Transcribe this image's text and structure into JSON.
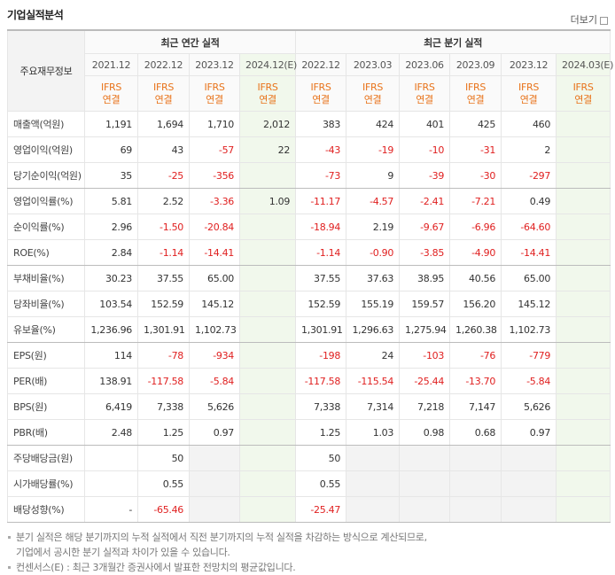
{
  "header": {
    "title": "기업실적분석",
    "more": "더보기"
  },
  "table": {
    "corner": "주요재무정보",
    "groups": [
      "최근 연간 실적",
      "최근 분기 실적"
    ],
    "periods": [
      "2021.12",
      "2022.12",
      "2023.12",
      "2024.12(E)",
      "2022.12",
      "2023.03",
      "2023.06",
      "2023.09",
      "2023.12",
      "2024.03(E)"
    ],
    "basis": [
      [
        "IFRS",
        "연결"
      ],
      [
        "IFRS",
        "연결"
      ],
      [
        "IFRS",
        "연결"
      ],
      [
        "IFRS",
        "연결"
      ],
      [
        "IFRS",
        "연결"
      ],
      [
        "IFRS",
        "연결"
      ],
      [
        "IFRS",
        "연결"
      ],
      [
        "IFRS",
        "연결"
      ],
      [
        "IFRS",
        "연결"
      ],
      [
        "IFRS",
        "연결"
      ]
    ],
    "rows": [
      [
        "매출액(억원)",
        "1,191",
        "1,694",
        "1,710",
        "2,012",
        "383",
        "424",
        "401",
        "425",
        "460",
        null
      ],
      [
        "영업이익(억원)",
        "69",
        "43",
        "-57",
        "22",
        "-43",
        "-19",
        "-10",
        "-31",
        "2",
        null
      ],
      [
        "당기순이익(억원)",
        "35",
        "-25",
        "-356",
        null,
        "-73",
        "9",
        "-39",
        "-30",
        "-297",
        null
      ],
      [
        "영업이익률(%)",
        "5.81",
        "2.52",
        "-3.36",
        "1.09",
        "-11.17",
        "-4.57",
        "-2.41",
        "-7.21",
        "0.49",
        null
      ],
      [
        "순이익률(%)",
        "2.96",
        "-1.50",
        "-20.84",
        null,
        "-18.94",
        "2.19",
        "-9.67",
        "-6.96",
        "-64.60",
        null
      ],
      [
        "ROE(%)",
        "2.84",
        "-1.14",
        "-14.41",
        null,
        "-1.14",
        "-0.90",
        "-3.85",
        "-4.90",
        "-14.41",
        null
      ],
      [
        "부채비율(%)",
        "30.23",
        "37.55",
        "65.00",
        null,
        "37.55",
        "37.63",
        "38.95",
        "40.56",
        "65.00",
        null
      ],
      [
        "당좌비율(%)",
        "103.54",
        "152.59",
        "145.12",
        null,
        "152.59",
        "155.19",
        "159.57",
        "156.20",
        "145.12",
        null
      ],
      [
        "유보율(%)",
        "1,236.96",
        "1,301.91",
        "1,102.73",
        null,
        "1,301.91",
        "1,296.63",
        "1,275.94",
        "1,260.38",
        "1,102.73",
        null
      ],
      [
        "EPS(원)",
        "114",
        "-78",
        "-934",
        null,
        "-198",
        "24",
        "-103",
        "-76",
        "-779",
        null
      ],
      [
        "PER(배)",
        "138.91",
        "-117.58",
        "-5.84",
        null,
        "-117.58",
        "-115.54",
        "-25.44",
        "-13.70",
        "-5.84",
        null
      ],
      [
        "BPS(원)",
        "6,419",
        "7,338",
        "5,626",
        null,
        "7,338",
        "7,314",
        "7,218",
        "7,147",
        "5,626",
        null
      ],
      [
        "PBR(배)",
        "2.48",
        "1.25",
        "0.97",
        null,
        "1.25",
        "1.03",
        "0.98",
        "0.68",
        "0.97",
        null
      ],
      [
        "주당배당금(원)",
        null,
        "50",
        null,
        null,
        "50",
        null,
        null,
        null,
        null,
        null
      ],
      [
        "시가배당률(%)",
        null,
        "0.55",
        null,
        null,
        "0.55",
        null,
        null,
        null,
        null,
        null
      ],
      [
        "배당성향(%)",
        "-",
        "-65.46",
        null,
        null,
        "-25.47",
        null,
        null,
        null,
        null,
        null
      ]
    ]
  },
  "notes": [
    [
      "분기 실적은 해당 분기까지의 누적 실적에서 직전 분기까지의 누적 실적을 차감하는 방식으로 계산되므로,",
      "기업에서 공시한 분기 실적과 차이가 있을 수 있습니다."
    ],
    [
      "컨센서스(E) : 최근 3개월간 증권사에서 발표한 전망치의 평균값입니다."
    ]
  ]
}
